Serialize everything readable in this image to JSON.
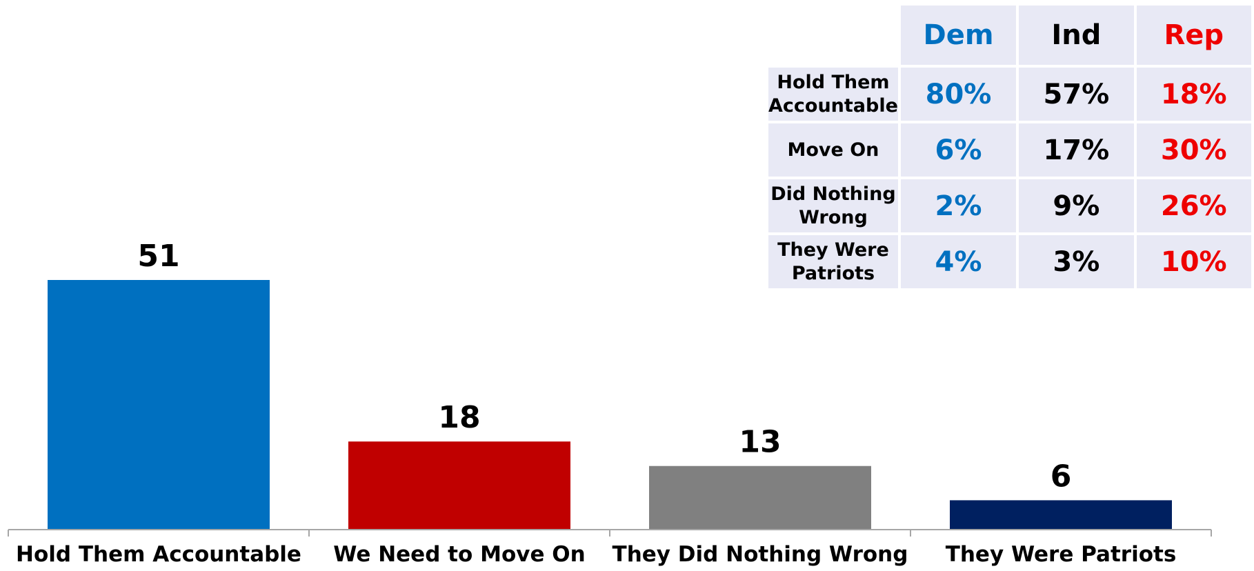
{
  "chart_data": [
    {
      "type": "bar",
      "categories": [
        "Hold Them Accountable",
        "We Need to Move On",
        "They Did Nothing Wrong",
        "They Were Patriots"
      ],
      "values": [
        51,
        18,
        13,
        6
      ],
      "colors": [
        "#0070c0",
        "#c00000",
        "#808080",
        "#002060"
      ],
      "title": "",
      "xlabel": "",
      "ylabel": "",
      "ylim": [
        0,
        55
      ],
      "grid": false,
      "data_labels": true
    },
    {
      "type": "table",
      "columns": [
        "Dem",
        "Ind",
        "Rep"
      ],
      "column_colors": [
        "#0070c0",
        "#000000",
        "#ee0000"
      ],
      "rows": [
        {
          "label": "Hold Them Accountable",
          "values": [
            "80%",
            "57%",
            "18%"
          ]
        },
        {
          "label": "Move On",
          "values": [
            "6%",
            "17%",
            "30%"
          ]
        },
        {
          "label": "Did Nothing Wrong",
          "values": [
            "2%",
            "9%",
            "26%"
          ]
        },
        {
          "label": "They Were Patriots",
          "values": [
            "4%",
            "3%",
            "10%"
          ]
        }
      ]
    }
  ]
}
